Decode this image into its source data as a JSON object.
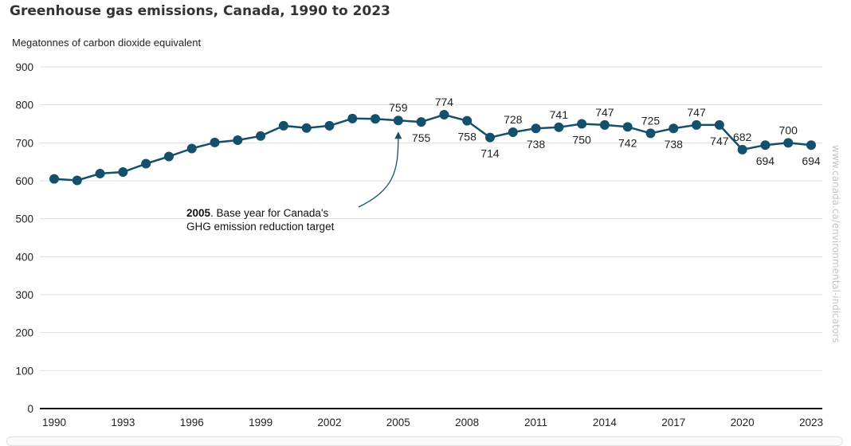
{
  "title": "Greenhouse gas emissions, Canada, 1990 to 2023",
  "source": "www.canada.ca/environmental-indicators",
  "chart_data": {
    "type": "line",
    "title": "Greenhouse gas emissions, Canada, 1990 to 2023",
    "xlabel": "",
    "ylabel": "Megatonnes of carbon dioxide equivalent",
    "ylim": [
      0,
      900
    ],
    "yticks": [
      0,
      100,
      200,
      300,
      400,
      500,
      600,
      700,
      800,
      900
    ],
    "xlim": [
      1990,
      2023
    ],
    "xticks": [
      1990,
      1993,
      1996,
      1999,
      2002,
      2005,
      2008,
      2011,
      2014,
      2017,
      2020,
      2023
    ],
    "grid": true,
    "series_color": "#14506b",
    "series": [
      {
        "x": [
          1990,
          1991,
          1992,
          1993,
          1994,
          1995,
          1996,
          1997,
          1998,
          1999,
          2000,
          2001,
          2002,
          2003,
          2004,
          2005,
          2006,
          2007,
          2008,
          2009,
          2010,
          2011,
          2012,
          2013,
          2014,
          2015,
          2016,
          2017,
          2018,
          2019,
          2020,
          2021,
          2022,
          2023
        ],
        "values": [
          605,
          601,
          619,
          623,
          645,
          664,
          685,
          701,
          707,
          718,
          745,
          739,
          745,
          764,
          763,
          759,
          755,
          774,
          758,
          714,
          728,
          738,
          741,
          750,
          747,
          742,
          725,
          738,
          747,
          747,
          682,
          694,
          700,
          694
        ]
      }
    ],
    "data_labels": [
      {
        "year": 2005,
        "text": "759",
        "pos": "above"
      },
      {
        "year": 2006,
        "text": "755",
        "pos": "below"
      },
      {
        "year": 2007,
        "text": "774",
        "pos": "above"
      },
      {
        "year": 2008,
        "text": "758",
        "pos": "below"
      },
      {
        "year": 2009,
        "text": "714",
        "pos": "below"
      },
      {
        "year": 2010,
        "text": "728",
        "pos": "above"
      },
      {
        "year": 2011,
        "text": "738",
        "pos": "below"
      },
      {
        "year": 2012,
        "text": "741",
        "pos": "above"
      },
      {
        "year": 2013,
        "text": "750",
        "pos": "below"
      },
      {
        "year": 2014,
        "text": "747",
        "pos": "above"
      },
      {
        "year": 2015,
        "text": "742",
        "pos": "below"
      },
      {
        "year": 2016,
        "text": "725",
        "pos": "above"
      },
      {
        "year": 2017,
        "text": "738",
        "pos": "below"
      },
      {
        "year": 2018,
        "text": "747",
        "pos": "above"
      },
      {
        "year": 2019,
        "text": "747",
        "pos": "below"
      },
      {
        "year": 2020,
        "text": "682",
        "pos": "above"
      },
      {
        "year": 2021,
        "text": "694",
        "pos": "below"
      },
      {
        "year": 2022,
        "text": "700",
        "pos": "above"
      },
      {
        "year": 2023,
        "text": "694",
        "pos": "below"
      }
    ],
    "annotation": {
      "year": 2005,
      "bold": "2005",
      "line1": ". Base year for Canada's",
      "line2": "GHG emission reduction target"
    }
  }
}
